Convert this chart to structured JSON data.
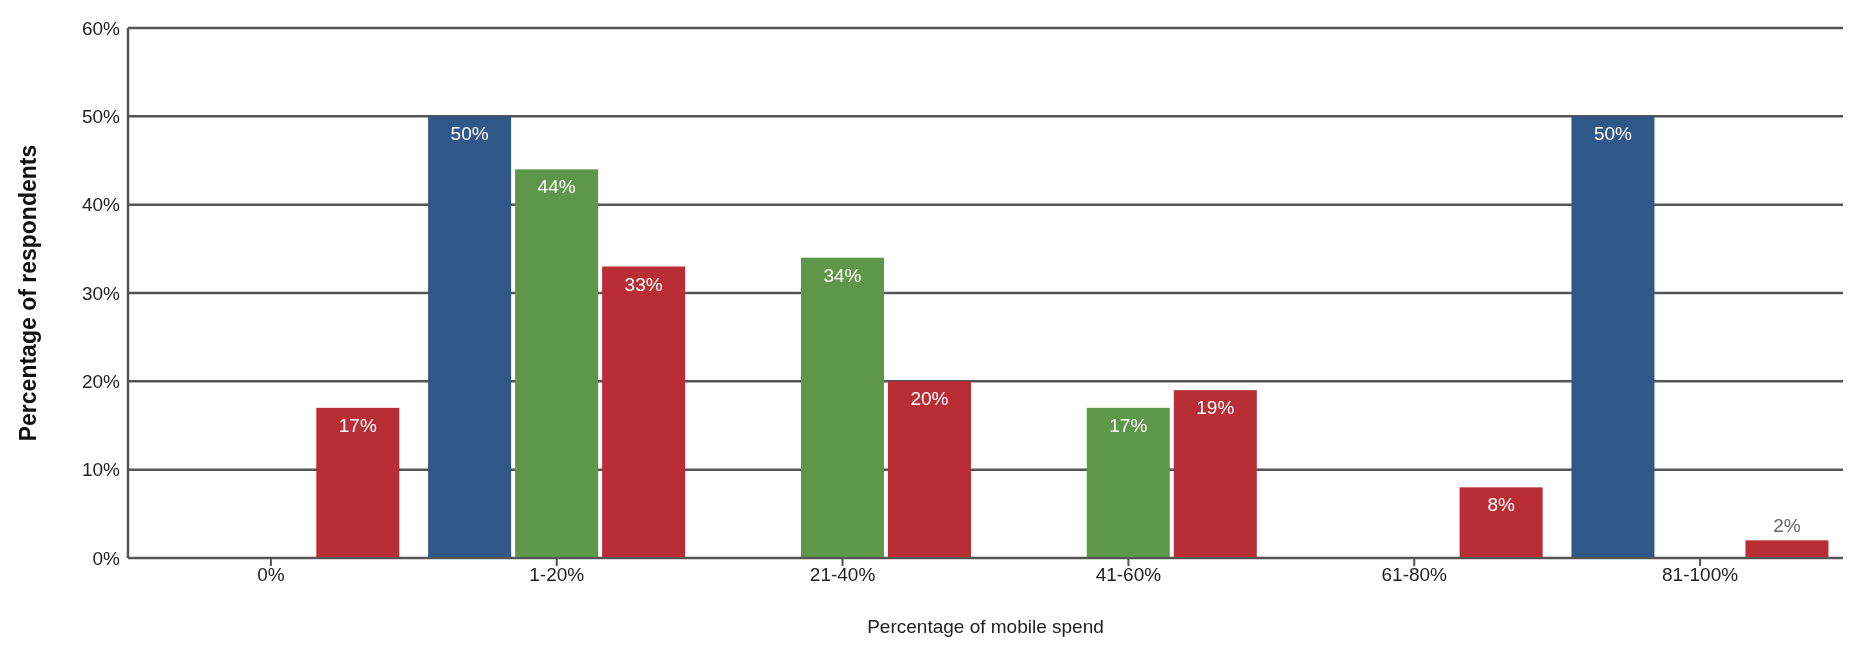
{
  "chart_data": {
    "type": "bar",
    "xlabel": "Percentage of mobile spend",
    "ylabel": "Percentage of respondents",
    "categories": [
      "0%",
      "1-20%",
      "21-40%",
      "41-60%",
      "61-80%",
      "81-100%"
    ],
    "series": [
      {
        "color": "#2f5787",
        "values": [
          0,
          50,
          0,
          0,
          0,
          50
        ],
        "value_labels": [
          null,
          "50%",
          null,
          null,
          null,
          "50%"
        ]
      },
      {
        "color": "#5e974a",
        "values": [
          0,
          44,
          34,
          17,
          0,
          0
        ],
        "value_labels": [
          null,
          "44%",
          "34%",
          "17%",
          null,
          null
        ]
      },
      {
        "color": "#b92e34",
        "values": [
          17,
          33,
          20,
          19,
          8,
          2
        ],
        "value_labels": [
          "17%",
          "33%",
          "20%",
          "19%",
          "8%",
          "2%"
        ]
      }
    ],
    "ylim": [
      0,
      60
    ],
    "yticks": [
      {
        "value": 0,
        "label": "0%"
      },
      {
        "value": 10,
        "label": "10%"
      },
      {
        "value": 20,
        "label": "20%"
      },
      {
        "value": 30,
        "label": "30%"
      },
      {
        "value": 40,
        "label": "40%"
      },
      {
        "value": 50,
        "label": "50%"
      },
      {
        "value": 60,
        "label": "60%"
      }
    ],
    "grid": "y",
    "legend": false
  }
}
